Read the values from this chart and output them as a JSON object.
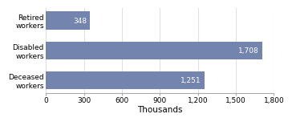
{
  "categories": [
    "Deceased\nworkers",
    "Disabled\nworkers",
    "Retired\nworkers"
  ],
  "values": [
    1251,
    1708,
    348
  ],
  "bar_color": "#7384ae",
  "bar_labels": [
    "1,251",
    "1,708",
    "348"
  ],
  "xlabel": "Thousands",
  "xlim": [
    0,
    1800
  ],
  "xticks": [
    0,
    300,
    600,
    900,
    1200,
    1500,
    1800
  ],
  "xtick_labels": [
    "0",
    "300",
    "600",
    "900",
    "1,200",
    "1,500",
    "1,800"
  ],
  "label_fontsize": 6.5,
  "xlabel_fontsize": 7.5,
  "bar_label_fontsize": 6.5,
  "background_color": "#ffffff",
  "grid_color": "#e0e0e0"
}
